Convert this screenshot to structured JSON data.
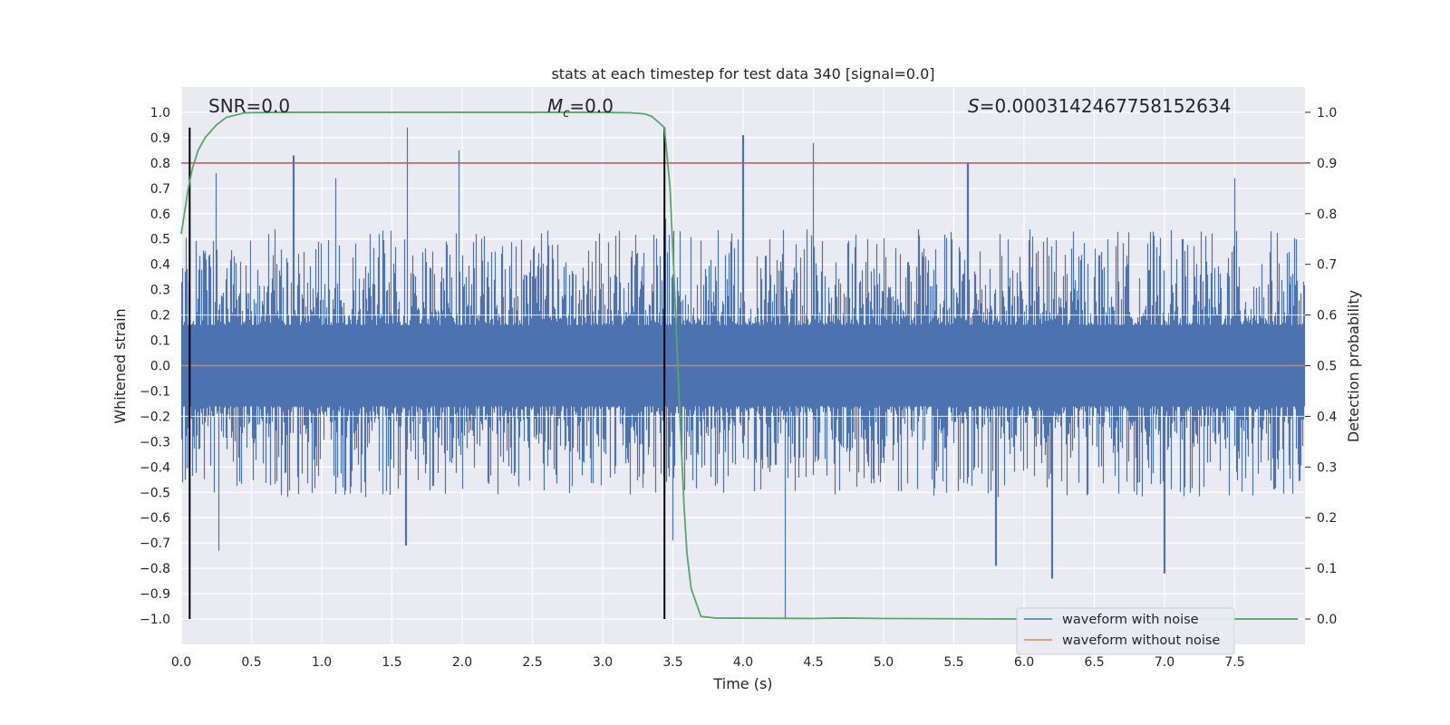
{
  "chart_data": {
    "type": "line",
    "title": "stats at each timestep for test data 340 [signal=0.0]",
    "xlabel": "Time (s)",
    "ylabel": "Whitened strain",
    "y2label": "Detection probability",
    "xlim": [
      0.0,
      8.0
    ],
    "ylim": [
      -1.1,
      1.1
    ],
    "y2lim": [
      -0.05,
      1.05
    ],
    "grid": true,
    "x_ticks": [
      "0.0",
      "0.5",
      "1.0",
      "1.5",
      "2.0",
      "2.5",
      "3.0",
      "3.5",
      "4.0",
      "4.5",
      "5.0",
      "5.5",
      "6.0",
      "6.5",
      "7.0",
      "7.5"
    ],
    "y_ticks": [
      "1.0",
      "0.9",
      "0.8",
      "0.7",
      "0.6",
      "0.5",
      "0.4",
      "0.3",
      "0.2",
      "0.1",
      "0.0",
      "−0.1",
      "−0.2",
      "−0.3",
      "−0.4",
      "−0.5",
      "−0.6",
      "−0.7",
      "−0.8",
      "−0.9",
      "−1.0"
    ],
    "y2_ticks": [
      "1.0",
      "0.9",
      "0.8",
      "0.7",
      "0.6",
      "0.5",
      "0.4",
      "0.3",
      "0.2",
      "0.1",
      "0.0"
    ],
    "annotations": {
      "snr": "SNR=0.0",
      "mc_symbol": "M",
      "mc_sub": "c",
      "mc_value": "=0.0",
      "s_symbol": "S",
      "s_value": "=0.0003142467758152634"
    },
    "legend": {
      "position": "lower-right",
      "entries": [
        "waveform with noise",
        "waveform without noise"
      ]
    },
    "vertical_lines_x": [
      0.06,
      3.44
    ],
    "threshold_probability": 0.9,
    "noise": {
      "name": "waveform with noise",
      "color": "#4c72b0",
      "range": [
        -1.0,
        0.94
      ],
      "peak_times": [
        0.25,
        0.8,
        1.1,
        1.61,
        1.98,
        3.45,
        4.0,
        4.5,
        5.6,
        7.5
      ],
      "peak_values": [
        0.76,
        0.83,
        0.74,
        0.94,
        0.85,
        0.58,
        0.91,
        0.88,
        0.8,
        0.74
      ],
      "trough_times": [
        0.27,
        1.6,
        3.5,
        4.3,
        5.8,
        6.2,
        7.0
      ],
      "trough_values": [
        -0.73,
        -0.71,
        -0.69,
        -1.0,
        -0.79,
        -0.84,
        -0.82
      ]
    },
    "clean": {
      "name": "waveform without noise",
      "color": "#dd8452",
      "value": 0.0
    },
    "probability": {
      "name": "Detection probability",
      "color": "#55a868",
      "t": [
        0.0,
        0.05,
        0.08,
        0.12,
        0.17,
        0.25,
        0.32,
        0.45,
        0.7,
        1.0,
        1.5,
        2.0,
        2.5,
        3.0,
        3.2,
        3.3,
        3.35,
        3.4,
        3.44,
        3.48,
        3.52,
        3.55,
        3.58,
        3.6,
        3.63,
        3.7,
        3.8,
        4.5,
        4.7,
        5.0,
        6.0,
        7.0,
        7.95
      ],
      "p": [
        0.76,
        0.85,
        0.89,
        0.925,
        0.95,
        0.975,
        0.99,
        0.999,
        1.0,
        1.0,
        1.0,
        1.0,
        1.0,
        1.0,
        0.999,
        0.997,
        0.992,
        0.98,
        0.97,
        0.85,
        0.6,
        0.4,
        0.22,
        0.13,
        0.06,
        0.005,
        0.002,
        0.001,
        0.002,
        0.001,
        0.0,
        0.0,
        0.0
      ]
    },
    "threshold_color": "#c44e52"
  }
}
